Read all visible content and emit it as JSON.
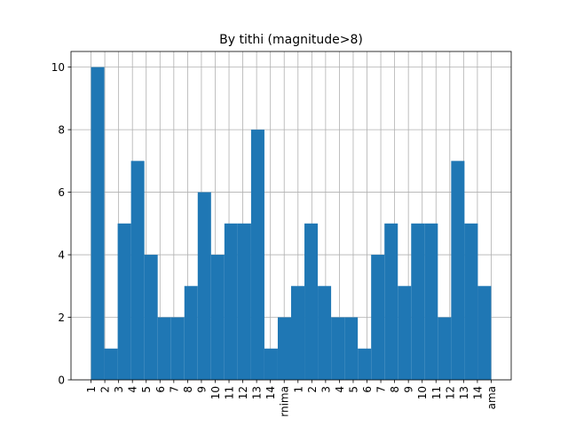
{
  "chart_data": {
    "type": "bar",
    "title": "By tithi (magnitude>8)",
    "xlabel": "",
    "ylabel": "",
    "ylim": [
      0,
      10.5
    ],
    "y_ticks": [
      0,
      2,
      4,
      6,
      8,
      10
    ],
    "x_tick_labels": [
      "1",
      "2",
      "3",
      "4",
      "5",
      "6",
      "7",
      "8",
      "9",
      "10",
      "11",
      "12",
      "13",
      "14",
      "rnima",
      "1",
      "2",
      "3",
      "4",
      "5",
      "6",
      "7",
      "8",
      "9",
      "10",
      "11",
      "12",
      "13",
      "14",
      "ama"
    ],
    "x_ticks": [
      1,
      2,
      3,
      4,
      5,
      6,
      7,
      8,
      9,
      10,
      11,
      12,
      13,
      14,
      15,
      16,
      17,
      18,
      19,
      20,
      21,
      22,
      23,
      24,
      25,
      26,
      27,
      28,
      29,
      30
    ],
    "bin_edges": [
      1,
      1.967,
      2.933,
      3.9,
      4.867,
      5.833,
      6.8,
      7.767,
      8.733,
      9.7,
      10.667,
      11.633,
      12.6,
      13.567,
      14.533,
      15.5,
      16.467,
      17.433,
      18.4,
      19.367,
      20.333,
      21.3,
      22.267,
      23.233,
      24.2,
      25.167,
      26.133,
      27.1,
      28.067,
      29.033,
      30
    ],
    "values": [
      10,
      1,
      5,
      7,
      4,
      2,
      2,
      3,
      6,
      4,
      5,
      5,
      8,
      1,
      2,
      3,
      5,
      3,
      2,
      2,
      1,
      4,
      5,
      3,
      5,
      5,
      2,
      7,
      5,
      3
    ],
    "bar_color": "#1f77b4",
    "grid": true
  }
}
